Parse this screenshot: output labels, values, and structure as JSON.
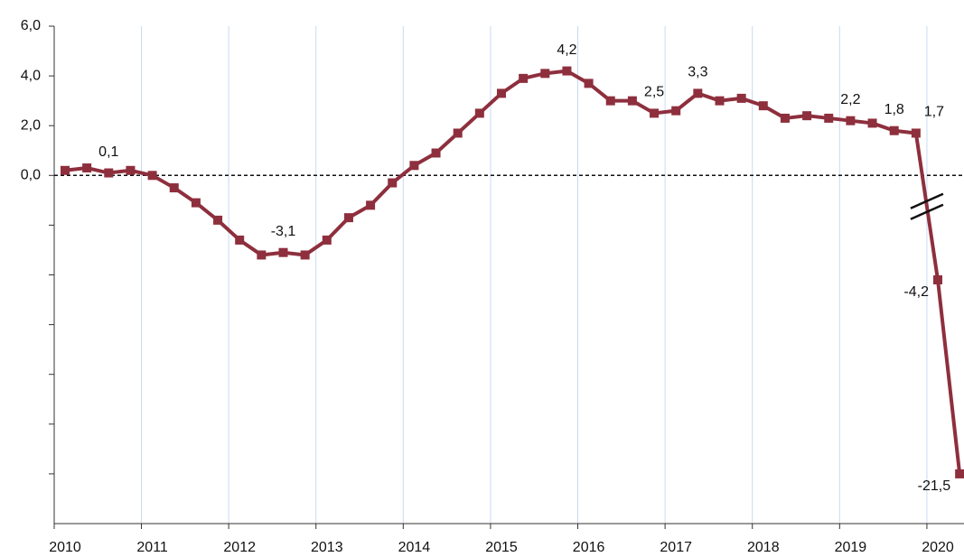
{
  "chart_data": {
    "type": "line",
    "categories": [
      "2010",
      null,
      null,
      null,
      "2011",
      null,
      null,
      null,
      "2012",
      null,
      null,
      null,
      "2013",
      null,
      null,
      null,
      "2014",
      null,
      null,
      null,
      "2015",
      null,
      null,
      null,
      "2016",
      null,
      null,
      null,
      "2017",
      null,
      null,
      null,
      "2018",
      null,
      null,
      null,
      "2019",
      null,
      null,
      null,
      "2020",
      null
    ],
    "series": [
      {
        "color": "#8e2f3d",
        "values": [
          0.2,
          0.3,
          0.1,
          0.2,
          0.0,
          -0.5,
          -1.1,
          -1.8,
          -2.6,
          -3.2,
          -3.1,
          -3.2,
          -2.6,
          -1.7,
          -1.2,
          -0.3,
          0.4,
          0.9,
          1.7,
          2.5,
          3.3,
          3.9,
          4.1,
          4.2,
          3.7,
          3.0,
          3.0,
          2.5,
          2.6,
          3.3,
          3.0,
          3.1,
          2.8,
          2.3,
          2.4,
          2.3,
          2.2,
          2.1,
          1.8,
          1.7,
          -4.2,
          -21.5
        ],
        "value_labels": [
          null,
          null,
          "0,1",
          null,
          null,
          null,
          null,
          null,
          null,
          null,
          "-3,1",
          null,
          null,
          null,
          null,
          null,
          null,
          null,
          null,
          null,
          null,
          null,
          null,
          "4,2",
          null,
          null,
          null,
          "2,5",
          null,
          "3,3",
          null,
          null,
          null,
          null,
          null,
          null,
          "2,2",
          null,
          "1,8",
          "1,7",
          "-4,2",
          "-21,5"
        ]
      }
    ],
    "ylim": [
      -23.5,
      6
    ],
    "y_break": [
      -6,
      -15.5
    ],
    "yticks": [
      {
        "value": 6,
        "label": "6,0"
      },
      {
        "value": 4,
        "label": "4,0"
      },
      {
        "value": 2,
        "label": "2,0"
      },
      {
        "value": 0,
        "label": "0,0"
      }
    ],
    "yticks_unlabeled": [
      -2,
      -4,
      -6,
      -17.5,
      -19.5,
      -21.5
    ],
    "zero_line": true,
    "grid": true,
    "grid_color": "#c9daf2"
  }
}
